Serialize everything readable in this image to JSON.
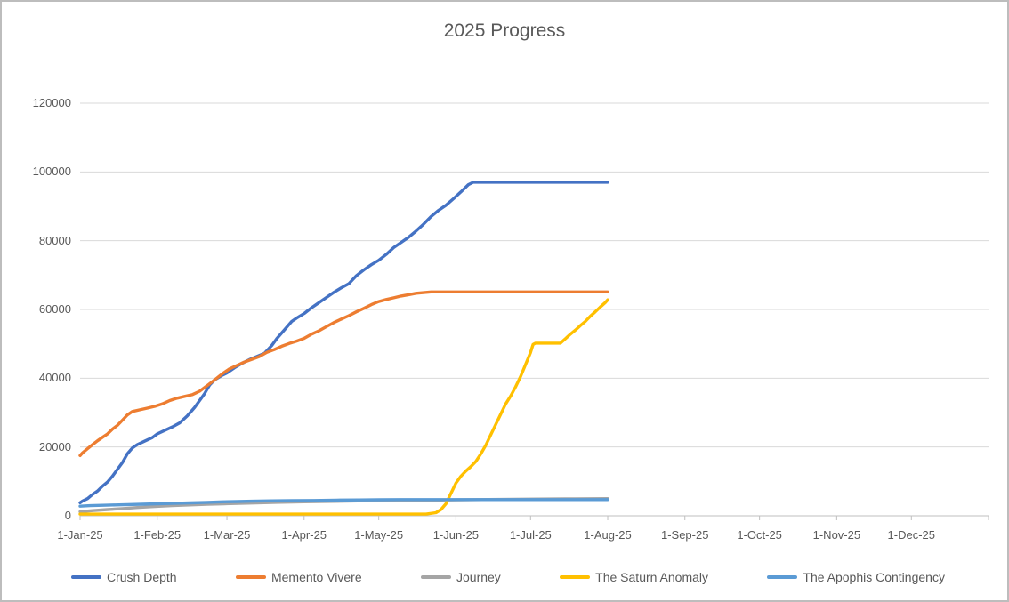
{
  "title": "2025 Progress",
  "chart_data": {
    "type": "line",
    "title": "2025 Progress",
    "xlabel": "",
    "ylabel": "",
    "ylim": [
      0,
      120000
    ],
    "x_range_days": [
      1,
      366
    ],
    "grid": "horizontal",
    "legend_position": "bottom",
    "y_ticks": [
      {
        "value": 0,
        "label": "0"
      },
      {
        "value": 20000,
        "label": "20000"
      },
      {
        "value": 40000,
        "label": "40000"
      },
      {
        "value": 60000,
        "label": "60000"
      },
      {
        "value": 80000,
        "label": "80000"
      },
      {
        "value": 100000,
        "label": "100000"
      },
      {
        "value": 120000,
        "label": "120000"
      }
    ],
    "x_ticks": [
      {
        "day": 1,
        "label": "1-Jan-25"
      },
      {
        "day": 32,
        "label": "1-Feb-25"
      },
      {
        "day": 60,
        "label": "1-Mar-25"
      },
      {
        "day": 91,
        "label": "1-Apr-25"
      },
      {
        "day": 121,
        "label": "1-May-25"
      },
      {
        "day": 152,
        "label": "1-Jun-25"
      },
      {
        "day": 182,
        "label": "1-Jul-25"
      },
      {
        "day": 213,
        "label": "1-Aug-25"
      },
      {
        "day": 244,
        "label": "1-Sep-25"
      },
      {
        "day": 274,
        "label": "1-Oct-25"
      },
      {
        "day": 305,
        "label": "1-Nov-25"
      },
      {
        "day": 335,
        "label": "1-Dec-25"
      },
      {
        "day": 366,
        "label": ""
      }
    ],
    "colors": {
      "gridline": "#d9d9d9",
      "axis": "#bfbfbf",
      "text": "#595959"
    },
    "series": [
      {
        "name": "Crush Depth",
        "color": "#4472C4",
        "points": [
          [
            1,
            3800
          ],
          [
            2,
            4300
          ],
          [
            4,
            5000
          ],
          [
            6,
            6200
          ],
          [
            8,
            7200
          ],
          [
            10,
            8600
          ],
          [
            12,
            9800
          ],
          [
            14,
            11500
          ],
          [
            16,
            13500
          ],
          [
            18,
            15500
          ],
          [
            20,
            18000
          ],
          [
            22,
            19700
          ],
          [
            24,
            20700
          ],
          [
            27,
            21700
          ],
          [
            30,
            22700
          ],
          [
            32,
            23800
          ],
          [
            35,
            24800
          ],
          [
            38,
            25800
          ],
          [
            41,
            27000
          ],
          [
            44,
            29000
          ],
          [
            47,
            31500
          ],
          [
            49,
            33500
          ],
          [
            51,
            35500
          ],
          [
            53,
            38000
          ],
          [
            55,
            39500
          ],
          [
            58,
            40800
          ],
          [
            60,
            41500
          ],
          [
            63,
            43000
          ],
          [
            66,
            44300
          ],
          [
            69,
            45400
          ],
          [
            72,
            46300
          ],
          [
            75,
            47200
          ],
          [
            78,
            49500
          ],
          [
            80,
            51500
          ],
          [
            83,
            54000
          ],
          [
            86,
            56500
          ],
          [
            88,
            57500
          ],
          [
            91,
            58800
          ],
          [
            94,
            60500
          ],
          [
            97,
            62000
          ],
          [
            100,
            63500
          ],
          [
            103,
            65000
          ],
          [
            106,
            66300
          ],
          [
            109,
            67500
          ],
          [
            112,
            69800
          ],
          [
            115,
            71500
          ],
          [
            118,
            73000
          ],
          [
            121,
            74300
          ],
          [
            124,
            76000
          ],
          [
            127,
            78000
          ],
          [
            130,
            79500
          ],
          [
            133,
            81000
          ],
          [
            136,
            82800
          ],
          [
            139,
            84800
          ],
          [
            142,
            87000
          ],
          [
            145,
            88800
          ],
          [
            148,
            90300
          ],
          [
            151,
            92200
          ],
          [
            154,
            94200
          ],
          [
            157,
            96300
          ],
          [
            159,
            97000
          ],
          [
            213,
            97000
          ]
        ]
      },
      {
        "name": "Memento Vivere",
        "color": "#ED7D31",
        "points": [
          [
            1,
            17500
          ],
          [
            2,
            18300
          ],
          [
            4,
            19500
          ],
          [
            6,
            20700
          ],
          [
            8,
            21800
          ],
          [
            10,
            22800
          ],
          [
            12,
            23800
          ],
          [
            14,
            25200
          ],
          [
            16,
            26300
          ],
          [
            18,
            27800
          ],
          [
            20,
            29300
          ],
          [
            22,
            30300
          ],
          [
            25,
            30800
          ],
          [
            28,
            31300
          ],
          [
            31,
            31800
          ],
          [
            34,
            32500
          ],
          [
            37,
            33500
          ],
          [
            40,
            34200
          ],
          [
            43,
            34700
          ],
          [
            46,
            35200
          ],
          [
            49,
            36200
          ],
          [
            52,
            37800
          ],
          [
            55,
            39500
          ],
          [
            58,
            41200
          ],
          [
            61,
            42700
          ],
          [
            64,
            43700
          ],
          [
            67,
            44700
          ],
          [
            70,
            45500
          ],
          [
            73,
            46300
          ],
          [
            76,
            47500
          ],
          [
            79,
            48300
          ],
          [
            82,
            49300
          ],
          [
            85,
            50100
          ],
          [
            88,
            50800
          ],
          [
            91,
            51600
          ],
          [
            94,
            52800
          ],
          [
            97,
            53800
          ],
          [
            100,
            55000
          ],
          [
            103,
            56200
          ],
          [
            106,
            57200
          ],
          [
            109,
            58200
          ],
          [
            112,
            59300
          ],
          [
            115,
            60300
          ],
          [
            118,
            61400
          ],
          [
            121,
            62300
          ],
          [
            124,
            62900
          ],
          [
            127,
            63400
          ],
          [
            130,
            63900
          ],
          [
            133,
            64300
          ],
          [
            136,
            64700
          ],
          [
            139,
            64900
          ],
          [
            142,
            65100
          ],
          [
            213,
            65100
          ]
        ]
      },
      {
        "name": "Journey",
        "color": "#A5A5A5",
        "points": [
          [
            1,
            1200
          ],
          [
            6,
            1500
          ],
          [
            12,
            1800
          ],
          [
            18,
            2100
          ],
          [
            24,
            2400
          ],
          [
            31,
            2700
          ],
          [
            38,
            2950
          ],
          [
            45,
            3150
          ],
          [
            52,
            3350
          ],
          [
            59,
            3500
          ],
          [
            70,
            3700
          ],
          [
            80,
            3900
          ],
          [
            91,
            4050
          ],
          [
            103,
            4200
          ],
          [
            115,
            4350
          ],
          [
            128,
            4450
          ],
          [
            141,
            4550
          ],
          [
            155,
            4650
          ],
          [
            170,
            4750
          ],
          [
            185,
            4850
          ],
          [
            200,
            4950
          ],
          [
            213,
            5000
          ]
        ]
      },
      {
        "name": "The Saturn Anomaly",
        "color": "#FFC000",
        "points": [
          [
            1,
            500
          ],
          [
            140,
            500
          ],
          [
            144,
            900
          ],
          [
            146,
            1800
          ],
          [
            148,
            3500
          ],
          [
            150,
            6500
          ],
          [
            152,
            9500
          ],
          [
            154,
            11500
          ],
          [
            156,
            13000
          ],
          [
            158,
            14300
          ],
          [
            160,
            15800
          ],
          [
            162,
            18000
          ],
          [
            164,
            20500
          ],
          [
            166,
            23500
          ],
          [
            168,
            26500
          ],
          [
            170,
            29500
          ],
          [
            172,
            32500
          ],
          [
            174,
            34800
          ],
          [
            176,
            37500
          ],
          [
            178,
            40500
          ],
          [
            180,
            44000
          ],
          [
            182,
            47500
          ],
          [
            183,
            49800
          ],
          [
            184,
            50200
          ],
          [
            194,
            50200
          ],
          [
            196,
            51500
          ],
          [
            198,
            52800
          ],
          [
            200,
            54000
          ],
          [
            202,
            55300
          ],
          [
            204,
            56500
          ],
          [
            206,
            58000
          ],
          [
            208,
            59300
          ],
          [
            210,
            60700
          ],
          [
            212,
            62000
          ],
          [
            213,
            62800
          ]
        ]
      },
      {
        "name": "The Apophis Contingency",
        "color": "#5B9BD5",
        "points": [
          [
            1,
            2800
          ],
          [
            5,
            2950
          ],
          [
            10,
            3050
          ],
          [
            15,
            3150
          ],
          [
            20,
            3250
          ],
          [
            26,
            3350
          ],
          [
            32,
            3500
          ],
          [
            38,
            3600
          ],
          [
            45,
            3750
          ],
          [
            52,
            3900
          ],
          [
            58,
            4050
          ],
          [
            64,
            4150
          ],
          [
            70,
            4250
          ],
          [
            78,
            4350
          ],
          [
            86,
            4400
          ],
          [
            95,
            4450
          ],
          [
            104,
            4550
          ],
          [
            113,
            4600
          ],
          [
            121,
            4650
          ],
          [
            130,
            4700
          ],
          [
            213,
            4700
          ]
        ]
      }
    ]
  }
}
